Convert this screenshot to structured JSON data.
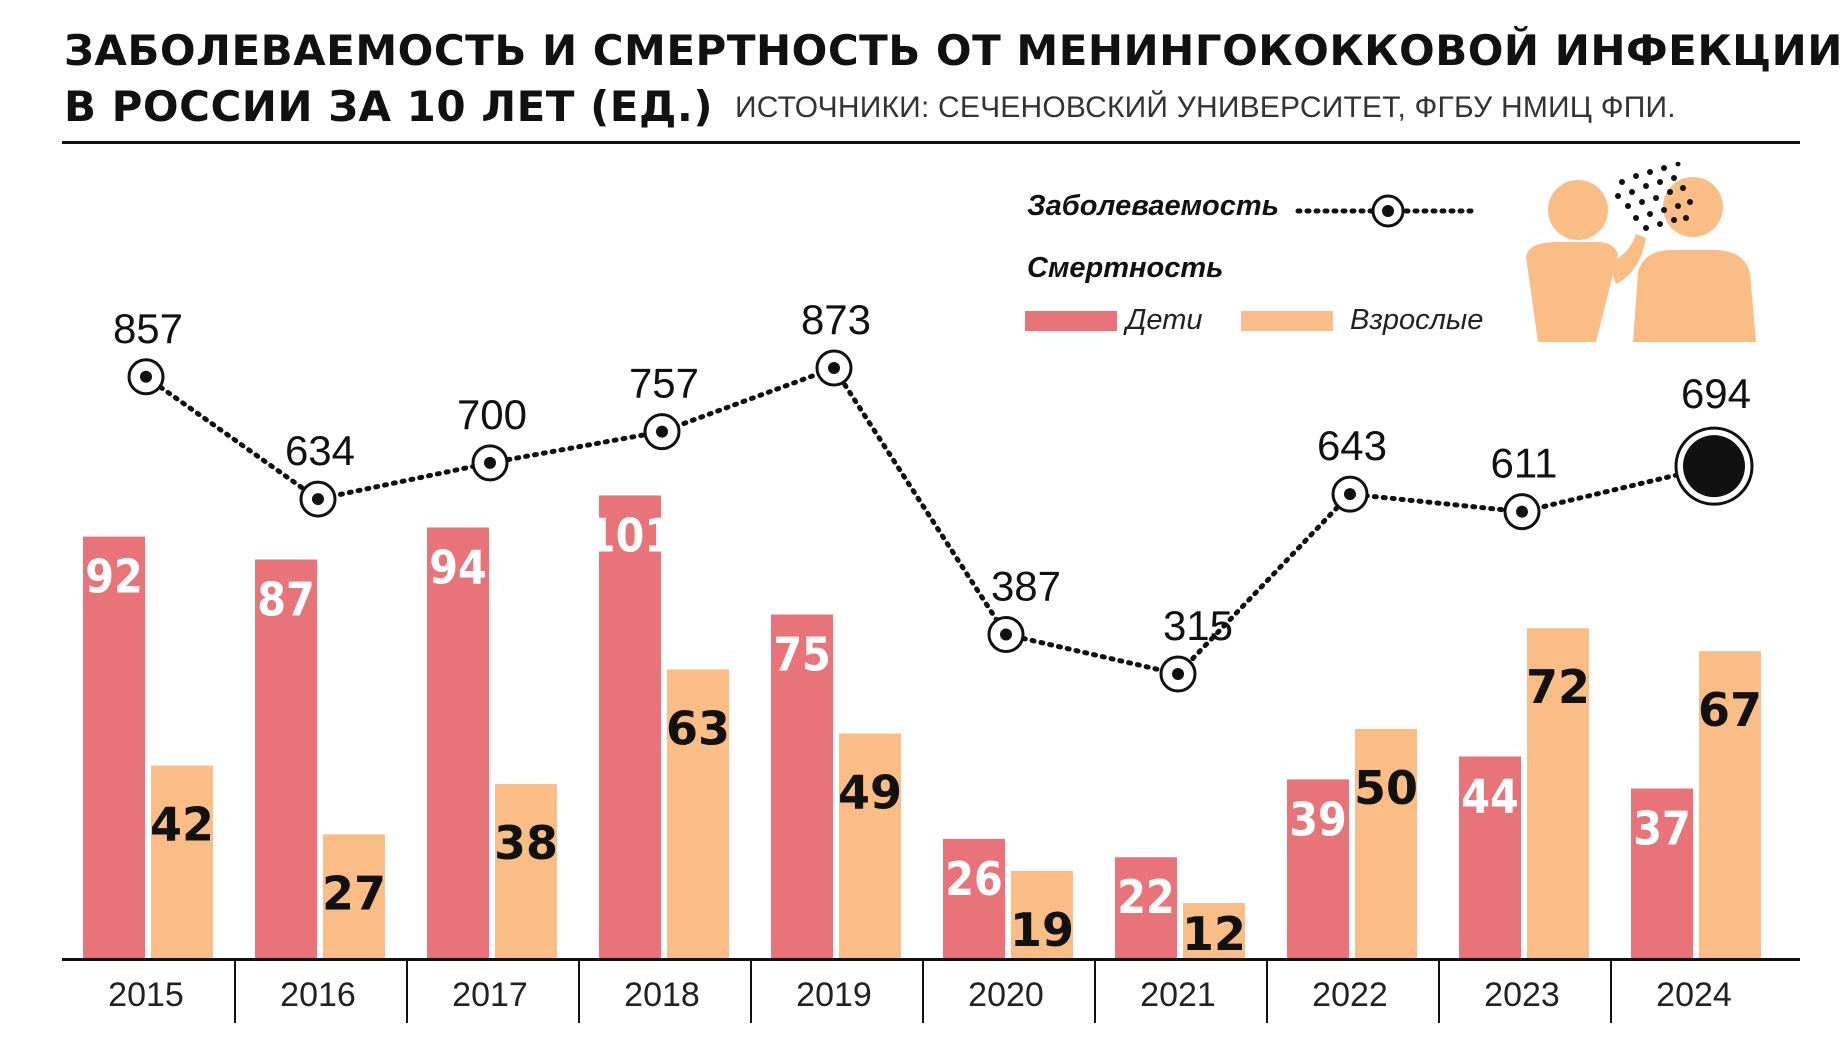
{
  "header": {
    "title_line1": "ЗАБОЛЕВАЕМОСТЬ И СМЕРТНОСТЬ ОТ МЕНИНГОКОККОВОЙ ИНФЕКЦИИ",
    "title_line2": "В РОССИИ ЗА 10 ЛЕТ (ЕД.)",
    "source": "ИСТОЧНИКИ: СЕЧЕНОВСКИЙ УНИВЕРСИТЕТ, ФГБУ НМИЦ ФПИ."
  },
  "legend": {
    "incidence_label": "Заболеваемость",
    "mortality_label": "Смертность",
    "children_label": "Дети",
    "adults_label": "Взрослые"
  },
  "illustration": {
    "icon": "person-sneezing-icon"
  },
  "colors": {
    "children": "#E8747A",
    "adults": "#F9BD85",
    "line": "#111111",
    "illustration": "#F9BD85"
  },
  "chart_data": {
    "type": "bar",
    "categories": [
      "2015",
      "2016",
      "2017",
      "2018",
      "2019",
      "2020",
      "2021",
      "2022",
      "2023",
      "2024"
    ],
    "series": [
      {
        "name": "Дети",
        "kind": "bar",
        "values": [
          92,
          87,
          94,
          101,
          75,
          26,
          22,
          39,
          44,
          37
        ]
      },
      {
        "name": "Взрослые",
        "kind": "bar",
        "values": [
          42,
          27,
          38,
          63,
          49,
          19,
          12,
          50,
          72,
          67
        ]
      },
      {
        "name": "Заболеваемость",
        "kind": "line",
        "style": "dotted",
        "values": [
          857,
          634,
          700,
          757,
          873,
          387,
          315,
          643,
          611,
          694
        ]
      }
    ],
    "grid": false,
    "legend_position": "top-right"
  }
}
